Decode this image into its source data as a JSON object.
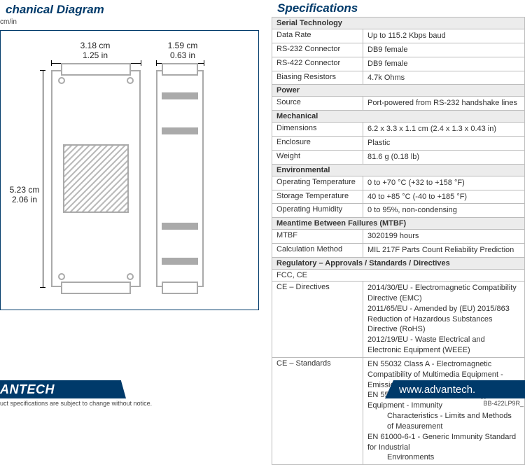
{
  "diagram": {
    "title": "chanical Diagram",
    "unit_note": "cm/in",
    "dims": {
      "top1_cm": "3.18 cm",
      "top1_in": "1.25 in",
      "top2_cm": "1.59 cm",
      "top2_in": "0.63 in",
      "left_cm": "5.23 cm",
      "left_in": "2.06 in"
    },
    "colors": {
      "outline": "#003a6a",
      "stroke": "#aaaaaa",
      "hatch": "#bbbbbb"
    }
  },
  "spec": {
    "title": "Specifications",
    "groups": [
      {
        "header": "Serial Technology",
        "rows": [
          {
            "k": "Data Rate",
            "v": "Up to 115.2 Kbps baud"
          },
          {
            "k": "RS-232 Connector",
            "v": "DB9 female"
          },
          {
            "k": "RS-422 Connector",
            "v": "DB9 female"
          },
          {
            "k": "Biasing Resistors",
            "v": "4.7k Ohms"
          }
        ]
      },
      {
        "header": "Power",
        "rows": [
          {
            "k": "Source",
            "v": "Port-powered from RS-232 handshake lines"
          }
        ]
      },
      {
        "header": "Mechanical",
        "rows": [
          {
            "k": "Dimensions",
            "v": "6.2 x 3.3 x 1.1 cm (2.4 x 1.3 x 0.43 in)"
          },
          {
            "k": "Enclosure",
            "v": "Plastic"
          },
          {
            "k": "Weight",
            "v": "81.6 g  (0.18 lb)"
          }
        ]
      },
      {
        "header": "Environmental",
        "rows": [
          {
            "k": "Operating Temperature",
            "v": "0 to +70 °C (+32 to +158 °F)"
          },
          {
            "k": "Storage Temperature",
            "v": "40 to +85 °C (-40 to +185 °F)"
          },
          {
            "k": "Operating Humidity",
            "v": "0 to 95%, non-condensing"
          }
        ]
      },
      {
        "header": "Meantime Between Failures (MTBF)",
        "rows": [
          {
            "k": "MTBF",
            "v": "3020199 hours"
          },
          {
            "k": "Calculation Method",
            "v": "MIL 217F Parts Count Reliability Prediction"
          }
        ]
      },
      {
        "header": "Regulatory – Approvals / Standards / Directives",
        "rows": [
          {
            "k": "FCC, CE",
            "v": "",
            "span": true
          },
          {
            "k": "CE – Directives",
            "v_lines": [
              "2014/30/EU - Electromagnetic Compatibility Directive (EMC)",
              "2011/65/EU - Amended by (EU) 2015/863 Reduction of Hazardous Substances Directive (RoHS)",
              "2012/19/EU - Waste Electrical and Electronic Equipment (WEEE)"
            ]
          },
          {
            "k": "CE – Standards",
            "v_lines": [
              "EN 55032 Class A - Electromagnetic Compatibility of Multimedia Equipment - Emission Requirements",
              "EN 55024 - Information Technology Equipment - Immunity",
              "        Characteristics - Limits and Methods  of Measurement",
              "EN 61000-6-1 - Generic Immunity Standard for Industrial",
              "        Environments"
            ]
          }
        ]
      }
    ]
  },
  "footer": {
    "brand": "ANTECH",
    "url": "www.advantech.",
    "disclaimer": "uct specifications are subject to change without notice.",
    "partno": "BB-422LP9R_"
  },
  "colors": {
    "brand_blue": "#003a6a",
    "grid": "#bbbbbb",
    "group_bg": "#ececec"
  }
}
